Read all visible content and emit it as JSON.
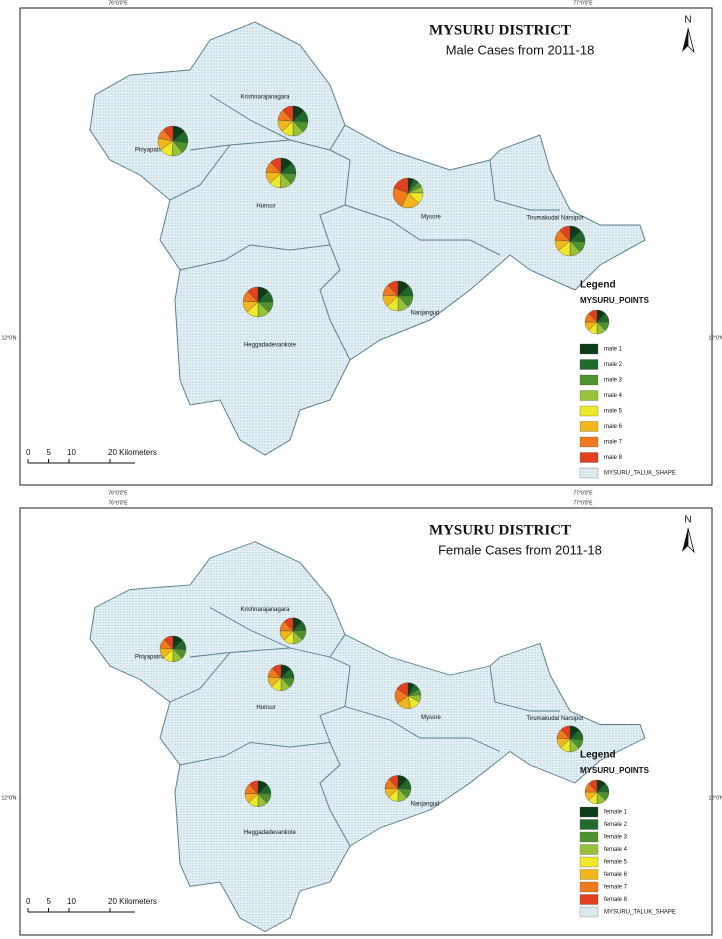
{
  "maps": [
    {
      "title": "MYSURU DISTRICT",
      "subtitle": "Male Cases from 2011-18",
      "north": "N",
      "graticule": {
        "top": [
          "76°0'0\"E",
          "77°0'0\"E"
        ],
        "bottom": [
          "76°0'0\"E",
          "77°0'0\"E"
        ],
        "left": "12°0'N",
        "right": "12°0'N"
      },
      "points": [
        {
          "name": "Piriyapatna",
          "values": [
            14,
            13,
            12,
            12,
            14,
            13,
            11,
            11
          ]
        },
        {
          "name": "Krishnarajanagara",
          "values": [
            13,
            13,
            12,
            12,
            13,
            13,
            12,
            12
          ]
        },
        {
          "name": "Hunsur",
          "values": [
            13,
            13,
            12,
            13,
            12,
            13,
            12,
            12
          ]
        },
        {
          "name": "Mysore",
          "values": [
            6,
            6,
            6,
            7,
            12,
            20,
            24,
            19
          ]
        },
        {
          "name": "Tirumakudal Narsipur",
          "values": [
            13,
            13,
            12,
            12,
            14,
            12,
            12,
            12
          ]
        },
        {
          "name": "Heggadadevankote",
          "values": [
            12,
            13,
            12,
            13,
            13,
            13,
            12,
            12
          ]
        },
        {
          "name": "Nanjangud",
          "values": [
            13,
            12,
            13,
            12,
            13,
            13,
            12,
            12
          ]
        }
      ],
      "legend": {
        "title": "Legend",
        "layer": "MYSURU_POINTS",
        "classes": [
          {
            "label": "male 1",
            "color": "#0e3b18"
          },
          {
            "label": "male 2",
            "color": "#1f6a2b"
          },
          {
            "label": "male 3",
            "color": "#4f922f"
          },
          {
            "label": "male 4",
            "color": "#98c23a"
          },
          {
            "label": "male 5",
            "color": "#ece92a"
          },
          {
            "label": "male 6",
            "color": "#f3b51d"
          },
          {
            "label": "male 7",
            "color": "#f07a1d"
          },
          {
            "label": "male 8",
            "color": "#e2401e"
          }
        ],
        "polygon_layer": "MYSURU_TALUK_SHAPE"
      },
      "scale": {
        "ticks": [
          0,
          5,
          10,
          {
            "value": 20,
            "label": "20 Kilometers"
          }
        ]
      }
    },
    {
      "title": "MYSURU DISTRICT",
      "subtitle": "Female Cases from 2011-18",
      "north": "N",
      "graticule": {
        "top": [
          "76°0'0\"E",
          "77°0'0\"E"
        ],
        "bottom": [
          "76°0'0\"E",
          "77°0'0\"E"
        ],
        "left": "12°0'N",
        "right": "12°0'N"
      },
      "points": [
        {
          "name": "Piriyapatna",
          "values": [
            13,
            13,
            12,
            12,
            13,
            13,
            12,
            12
          ]
        },
        {
          "name": "Krishnarajanagara",
          "values": [
            12,
            12,
            13,
            12,
            13,
            13,
            13,
            12
          ]
        },
        {
          "name": "Hunsur",
          "values": [
            13,
            13,
            12,
            12,
            13,
            13,
            12,
            12
          ]
        },
        {
          "name": "Mysore",
          "values": [
            8,
            8,
            8,
            9,
            14,
            18,
            19,
            16
          ]
        },
        {
          "name": "Tirumakudal Narsipur",
          "values": [
            13,
            13,
            12,
            12,
            13,
            13,
            12,
            12
          ]
        },
        {
          "name": "Heggadadevankote",
          "values": [
            13,
            12,
            13,
            12,
            13,
            12,
            13,
            12
          ]
        },
        {
          "name": "Nanjangud",
          "values": [
            13,
            13,
            12,
            12,
            13,
            12,
            13,
            12
          ]
        }
      ],
      "legend": {
        "title": "Legend",
        "layer": "MYSURU_POINTS",
        "classes": [
          {
            "label": "female 1",
            "color": "#0e3b18"
          },
          {
            "label": "female 2",
            "color": "#1f6a2b"
          },
          {
            "label": "female 3",
            "color": "#4f922f"
          },
          {
            "label": "female 4",
            "color": "#98c23a"
          },
          {
            "label": "female 5",
            "color": "#ece92a"
          },
          {
            "label": "female 6",
            "color": "#f3b51d"
          },
          {
            "label": "female 7",
            "color": "#f07a1d"
          },
          {
            "label": "female 8",
            "color": "#e2401e"
          }
        ],
        "polygon_layer": "MYSURU_TALUK_SHAPE"
      },
      "scale": {
        "ticks": [
          0,
          5,
          10,
          {
            "value": 20,
            "label": "20 Kilometers"
          }
        ]
      }
    }
  ]
}
